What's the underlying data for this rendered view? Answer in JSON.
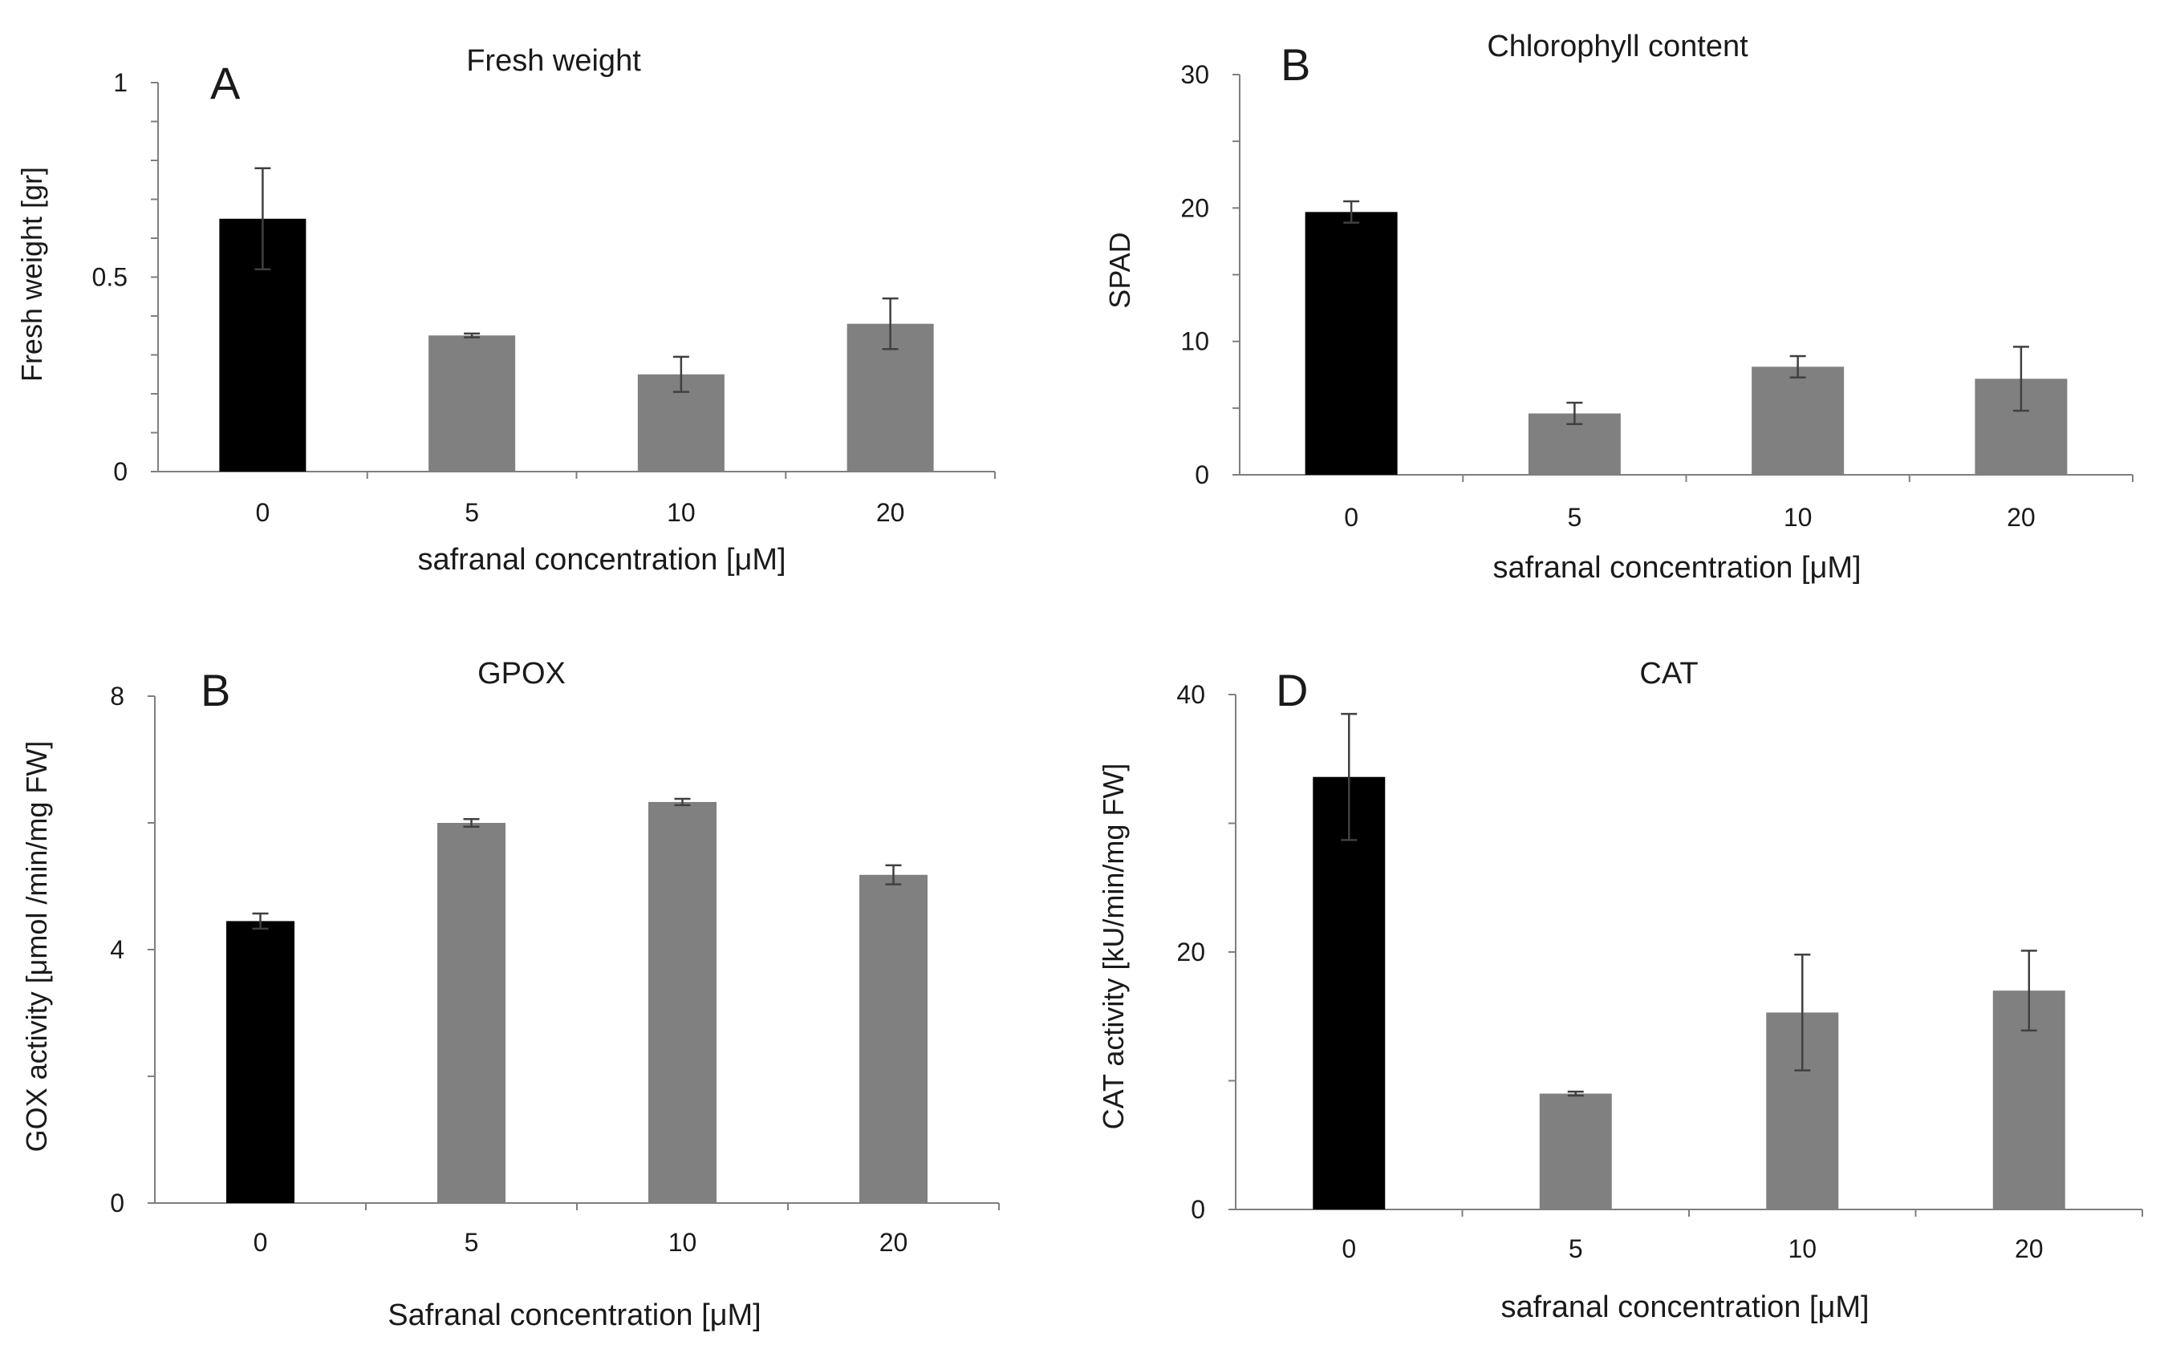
{
  "figure": {
    "bar_colors": {
      "control": "#000000",
      "treated": "#808080"
    },
    "axis_color": "#7f7f7f",
    "error_bar_color": "#404040"
  },
  "chart_data": [
    {
      "type": "bar",
      "panel_letter": "A",
      "title": "Fresh weight",
      "xlabel": "safranal concentration [μM]",
      "ylabel": "Fresh weight [gr]",
      "categories": [
        "0",
        "5",
        "10",
        "20"
      ],
      "values": [
        0.65,
        0.35,
        0.25,
        0.38
      ],
      "errors": [
        0.13,
        0.005,
        0.045,
        0.065
      ],
      "ylim": [
        0,
        1
      ],
      "yticks": [
        0,
        0.5,
        1
      ],
      "ytick_labels": [
        "0",
        "0.5",
        "1"
      ],
      "minor_ticks": 10,
      "grid": false
    },
    {
      "type": "bar",
      "panel_letter": "B",
      "title": "Chlorophyll content",
      "xlabel": "safranal concentration [μM]",
      "ylabel": "SPAD",
      "categories": [
        "0",
        "5",
        "10",
        "20"
      ],
      "values": [
        19.7,
        4.6,
        8.1,
        7.2
      ],
      "errors": [
        0.8,
        0.8,
        0.8,
        2.4
      ],
      "ylim": [
        0,
        30
      ],
      "yticks": [
        0,
        10,
        20,
        30
      ],
      "ytick_labels": [
        "0",
        "10",
        "20",
        "30"
      ],
      "minor_ticks": 6,
      "grid": false
    },
    {
      "type": "bar",
      "panel_letter": "B",
      "title": "GPOX",
      "xlabel": "Safranal concentration [μM]",
      "ylabel": "GOX activity [μmol /min/mg FW]",
      "categories": [
        "0",
        "5",
        "10",
        "20"
      ],
      "values": [
        4.45,
        6.0,
        6.33,
        5.18
      ],
      "errors": [
        0.12,
        0.06,
        0.05,
        0.15
      ],
      "ylim": [
        0,
        8
      ],
      "yticks": [
        0,
        4,
        8
      ],
      "ytick_labels": [
        "0",
        "4",
        "8"
      ],
      "minor_ticks": 4,
      "grid": false
    },
    {
      "type": "bar",
      "panel_letter": "D",
      "title": "CAT",
      "xlabel": "safranal concentration [μM]",
      "ylabel": "CAT activity [kU/min/mg FW]",
      "categories": [
        "0",
        "5",
        "10",
        "20"
      ],
      "values": [
        33.6,
        9.0,
        15.3,
        17.0
      ],
      "errors": [
        4.9,
        0.15,
        4.5,
        3.1
      ],
      "ylim": [
        0,
        40
      ],
      "yticks": [
        0,
        20,
        40
      ],
      "ytick_labels": [
        "0",
        "20",
        "40"
      ],
      "minor_ticks": 4,
      "grid": false
    }
  ]
}
